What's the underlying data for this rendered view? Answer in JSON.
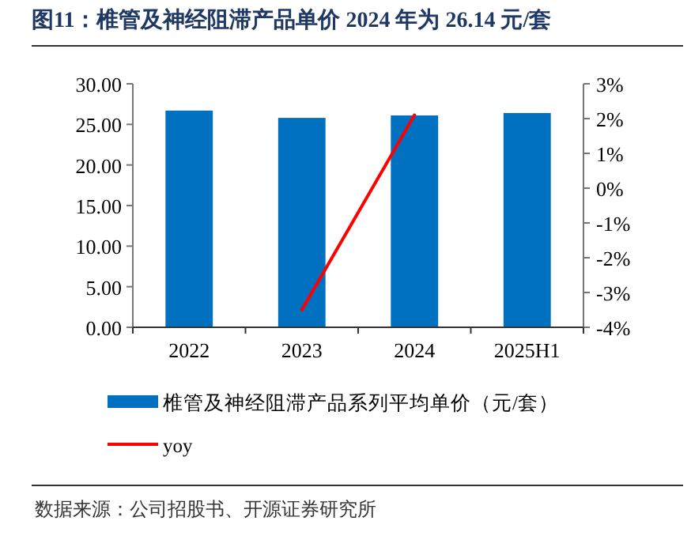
{
  "chart_data": {
    "type": "bar",
    "title": "图11：椎管及神经阻滞产品单价 2024 年为 26.14 元/套",
    "categories": [
      "2022",
      "2023",
      "2024",
      "2025H1"
    ],
    "series": [
      {
        "name": "椎管及神经阻滞产品系列平均单价（元/套）",
        "color": "#0070c0",
        "values": [
          26.7,
          25.8,
          26.1,
          26.4
        ]
      },
      {
        "name": "yoy",
        "type": "line",
        "axis": "y2",
        "color": "#ff0000",
        "values": [
          null,
          -3.5,
          2.1,
          null
        ]
      }
    ],
    "ylim": [
      0,
      30
    ],
    "yticks": [
      {
        "value": 0,
        "label": "0.00"
      },
      {
        "value": 5,
        "label": "5.00"
      },
      {
        "value": 10,
        "label": "10.00"
      },
      {
        "value": 15,
        "label": "15.00"
      },
      {
        "value": 20,
        "label": "20.00"
      },
      {
        "value": 25,
        "label": "25.00"
      },
      {
        "value": 30,
        "label": "30.00"
      }
    ],
    "y2lim": [
      -4,
      3
    ],
    "y2ticks": [
      {
        "value": -4,
        "label": "-4%"
      },
      {
        "value": -3,
        "label": "-3%"
      },
      {
        "value": -2,
        "label": "-2%"
      },
      {
        "value": -1,
        "label": "-1%"
      },
      {
        "value": 0,
        "label": "0%"
      },
      {
        "value": 1,
        "label": "1%"
      },
      {
        "value": 2,
        "label": "2%"
      },
      {
        "value": 3,
        "label": "3%"
      }
    ],
    "legend": "bottom",
    "grid": false,
    "annotations": [
      "数据来源：公司招股书、开源证券研究所"
    ]
  }
}
